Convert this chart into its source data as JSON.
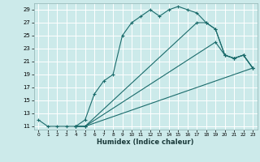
{
  "title": "",
  "xlabel": "Humidex (Indice chaleur)",
  "bg_color": "#cceaea",
  "grid_color": "#ffffff",
  "line_color": "#1a6b6b",
  "xlim": [
    -0.5,
    23.5
  ],
  "ylim": [
    10.5,
    30
  ],
  "xticks": [
    0,
    1,
    2,
    3,
    4,
    5,
    6,
    7,
    8,
    9,
    10,
    11,
    12,
    13,
    14,
    15,
    16,
    17,
    18,
    19,
    20,
    21,
    22,
    23
  ],
  "yticks": [
    11,
    13,
    15,
    17,
    19,
    21,
    23,
    25,
    27,
    29
  ],
  "lines": [
    {
      "x": [
        0,
        1,
        2,
        3,
        4,
        5,
        6,
        7,
        8,
        9,
        10,
        11,
        12,
        13,
        14,
        15,
        16,
        17,
        18,
        19,
        20,
        21,
        22,
        23
      ],
      "y": [
        12,
        11,
        11,
        11,
        11,
        12,
        16,
        18,
        19,
        25,
        27,
        28,
        29,
        28,
        29,
        29.5,
        29,
        28.5,
        27,
        26,
        22,
        21.5,
        22,
        20
      ]
    },
    {
      "x": [
        4,
        5,
        23
      ],
      "y": [
        11,
        11,
        20
      ]
    },
    {
      "x": [
        4,
        5,
        19,
        20,
        21,
        22,
        23
      ],
      "y": [
        11,
        11,
        24,
        22,
        21.5,
        22,
        20
      ]
    },
    {
      "x": [
        4,
        5,
        17,
        18,
        19,
        20,
        21,
        22,
        23
      ],
      "y": [
        11,
        11,
        27,
        27,
        26,
        22,
        21.5,
        22,
        20
      ]
    }
  ]
}
